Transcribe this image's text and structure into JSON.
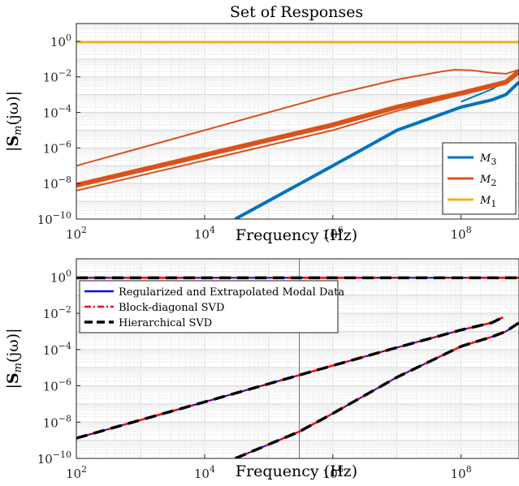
{
  "chart_data": [
    {
      "type": "line",
      "title": "Set of Responses",
      "xlabel": "Frequency (Hz)",
      "ylabel": "|S_m(jω)|",
      "xscale": "log",
      "yscale": "log",
      "xlim": [
        100,
        800000000
      ],
      "ylim": [
        1e-10,
        10
      ],
      "x_tick_labels": [
        "10^2",
        "10^4",
        "10^6",
        "10^8"
      ],
      "y_tick_labels": [
        "10^-10",
        "10^-8",
        "10^-6",
        "10^-4",
        "10^-2",
        "10^0"
      ],
      "grid": true,
      "legend_position": "lower-right",
      "series": [
        {
          "name": "M_3",
          "color": "#0072BD",
          "curves": [
            [
              [
                30000,
                1e-10
              ],
              [
                1000000,
                1e-07
              ],
              [
                10000000,
                1e-05
              ],
              [
                100000000,
                0.0002
              ],
              [
                300000000,
                0.0005
              ],
              [
                500000000,
                0.001
              ],
              [
                800000000,
                0.005
              ]
            ],
            [
              [
                100000000,
                0.0004
              ],
              [
                300000000,
                0.002
              ],
              [
                500000000,
                0.006
              ],
              [
                800000000,
                0.02
              ]
            ]
          ]
        },
        {
          "name": "M_2",
          "color": "#D95319",
          "curves": [
            [
              [
                100,
                1e-07
              ],
              [
                1000,
                1e-06
              ],
              [
                10000,
                1e-05
              ],
              [
                100000,
                0.0001
              ],
              [
                1000000,
                0.001
              ],
              [
                10000000,
                0.007
              ],
              [
                50000000,
                0.02
              ],
              [
                80000000,
                0.025
              ],
              [
                150000000,
                0.023
              ],
              [
                300000000,
                0.017
              ],
              [
                500000000,
                0.015
              ],
              [
                800000000,
                0.025
              ]
            ],
            [
              [
                100,
                8e-09
              ],
              [
                1000000,
                2e-05
              ],
              [
                10000000,
                0.0002
              ],
              [
                100000000,
                0.0012
              ],
              [
                500000000,
                0.005
              ],
              [
                800000000,
                0.02
              ]
            ],
            [
              [
                100,
                4e-09
              ],
              [
                1000000,
                1e-05
              ],
              [
                10000000,
                0.00012
              ],
              [
                100000000,
                0.001
              ],
              [
                500000000,
                0.004
              ],
              [
                800000000,
                0.015
              ]
            ]
          ]
        },
        {
          "name": "M_1",
          "color": "#EDB120",
          "curves": [
            [
              [
                100,
                0.9
              ],
              [
                800000000,
                0.9
              ]
            ]
          ]
        }
      ]
    },
    {
      "type": "line",
      "title": "",
      "xlabel": "Frequency (Hz)",
      "ylabel": "|S_m(jω)|",
      "xscale": "log",
      "yscale": "log",
      "xlim": [
        100,
        800000000
      ],
      "ylim": [
        1e-10,
        10
      ],
      "x_tick_labels": [
        "10^2",
        "10^4",
        "10^6",
        "10^8"
      ],
      "y_tick_labels": [
        "10^-10",
        "10^-8",
        "10^-6",
        "10^-4",
        "10^-2",
        "10^0"
      ],
      "grid": true,
      "legend_position": "top-left",
      "series": [
        {
          "name": "Regularized and Extrapolated Modal Data",
          "color": "#0000FF",
          "style": "solid"
        },
        {
          "name": "Block-diagonal SVD",
          "color": "#FF0000",
          "style": "dashdot"
        },
        {
          "name": "Hierarchical SVD",
          "color": "#000000",
          "style": "dashed"
        }
      ],
      "curves": [
        [
          [
            100,
            0.9
          ],
          [
            800000000,
            0.9
          ]
        ],
        [
          [
            100,
            1.3e-09
          ],
          [
            1000,
            1.3e-08
          ],
          [
            10000,
            1.3e-07
          ],
          [
            100000,
            1.3e-06
          ],
          [
            1000000,
            1.3e-05
          ],
          [
            10000000,
            0.00013
          ],
          [
            100000000,
            0.0012
          ],
          [
            300000000,
            0.003
          ],
          [
            450000000,
            0.006
          ]
        ],
        [
          [
            30000,
            1e-10
          ],
          [
            300000,
            3e-09
          ],
          [
            1000000,
            3e-08
          ],
          [
            10000000,
            3e-06
          ],
          [
            100000000,
            0.00015
          ],
          [
            300000000,
            0.0005
          ],
          [
            500000000,
            0.001
          ],
          [
            800000000,
            0.003
          ]
        ]
      ],
      "vertical_line_x": 300000
    }
  ]
}
